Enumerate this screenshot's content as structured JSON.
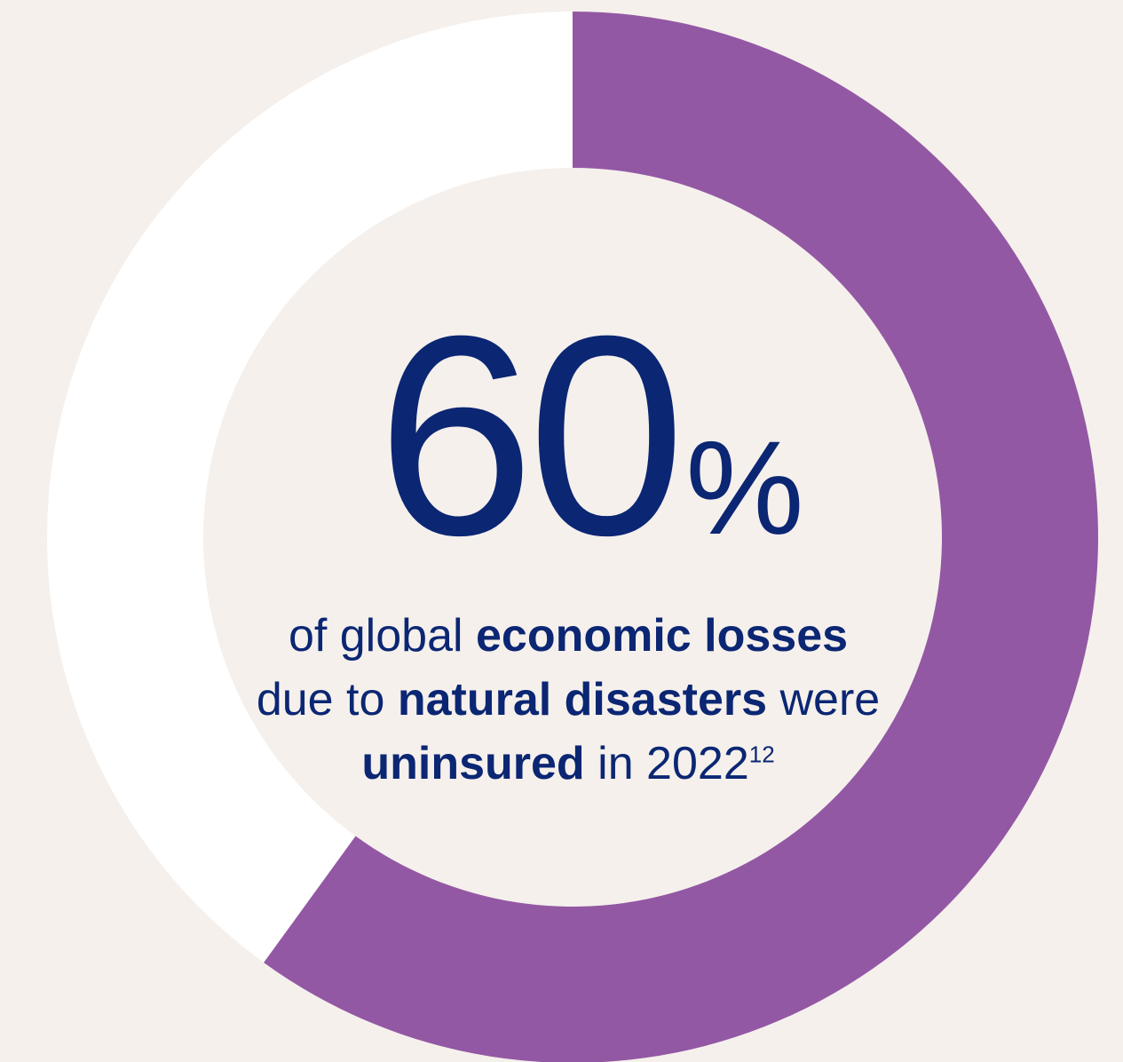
{
  "colors": {
    "background": "#f5f0ec",
    "highlight_segment": "#9358a4",
    "remainder_segment": "#ffffff",
    "text": "#0b2673"
  },
  "chart_data": {
    "type": "pie",
    "categories": [
      "uninsured",
      "insured"
    ],
    "values": [
      60,
      40
    ],
    "colors": [
      "#9358a4",
      "#ffffff"
    ],
    "title": "",
    "value_label": "60",
    "unit_label": "%"
  },
  "caption": {
    "line1_normal": "of global ",
    "line1_bold": "economic losses",
    "line2_normal_a": "due to ",
    "line2_bold": "natural disasters",
    "line2_normal_b": " were",
    "line3_bold": "uninsured",
    "line3_normal": " in 2022",
    "footnote": "12"
  }
}
